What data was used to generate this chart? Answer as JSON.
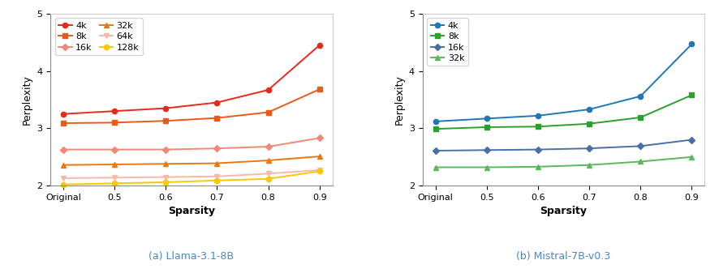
{
  "x_labels": [
    "Original",
    "0.5",
    "0.6",
    "0.7",
    "0.8",
    "0.9"
  ],
  "x_vals": [
    0,
    1,
    2,
    3,
    4,
    5
  ],
  "llama": {
    "title": "(a) Llama-3.1-8B",
    "series": [
      {
        "label": "4k",
        "color": "#e8281a",
        "marker": "o",
        "values": [
          3.25,
          3.3,
          3.35,
          3.45,
          3.67,
          4.45
        ]
      },
      {
        "label": "8k",
        "color": "#e85a1a",
        "marker": "s",
        "values": [
          3.09,
          3.1,
          3.13,
          3.18,
          3.28,
          3.68
        ]
      },
      {
        "label": "16k",
        "color": "#f08878",
        "marker": "D",
        "values": [
          2.63,
          2.63,
          2.63,
          2.65,
          2.68,
          2.83
        ]
      },
      {
        "label": "32k",
        "color": "#e87810",
        "marker": "^",
        "values": [
          2.36,
          2.37,
          2.38,
          2.39,
          2.44,
          2.51
        ]
      },
      {
        "label": "64k",
        "color": "#f8b8a8",
        "marker": "v",
        "values": [
          2.13,
          2.14,
          2.15,
          2.16,
          2.21,
          2.27
        ]
      },
      {
        "label": "128k",
        "color": "#f8c800",
        "marker": "o",
        "values": [
          2.02,
          2.04,
          2.06,
          2.09,
          2.12,
          2.25
        ]
      }
    ]
  },
  "mistral": {
    "title": "(b) Mistral-7B-v0.3",
    "series": [
      {
        "label": "4k",
        "color": "#1f77b4",
        "marker": "o",
        "values": [
          3.12,
          3.17,
          3.22,
          3.33,
          3.56,
          4.47
        ]
      },
      {
        "label": "8k",
        "color": "#2ca02c",
        "marker": "s",
        "values": [
          2.99,
          3.02,
          3.03,
          3.08,
          3.19,
          3.58
        ]
      },
      {
        "label": "16k",
        "color": "#4a6fa5",
        "marker": "D",
        "values": [
          2.61,
          2.62,
          2.63,
          2.65,
          2.69,
          2.8
        ]
      },
      {
        "label": "32k",
        "color": "#5cb85c",
        "marker": "^",
        "values": [
          2.32,
          2.32,
          2.33,
          2.36,
          2.42,
          2.5
        ]
      }
    ]
  },
  "ylabel": "Perplexity",
  "xlabel": "Sparsity",
  "ylim": [
    2.0,
    5.0
  ],
  "title_color": "#4a86c8",
  "title_fontsize": 9,
  "axis_label_fontsize": 9,
  "tick_fontsize": 8,
  "legend_fontsize": 8,
  "linewidth": 1.4,
  "markersize": 4.5
}
